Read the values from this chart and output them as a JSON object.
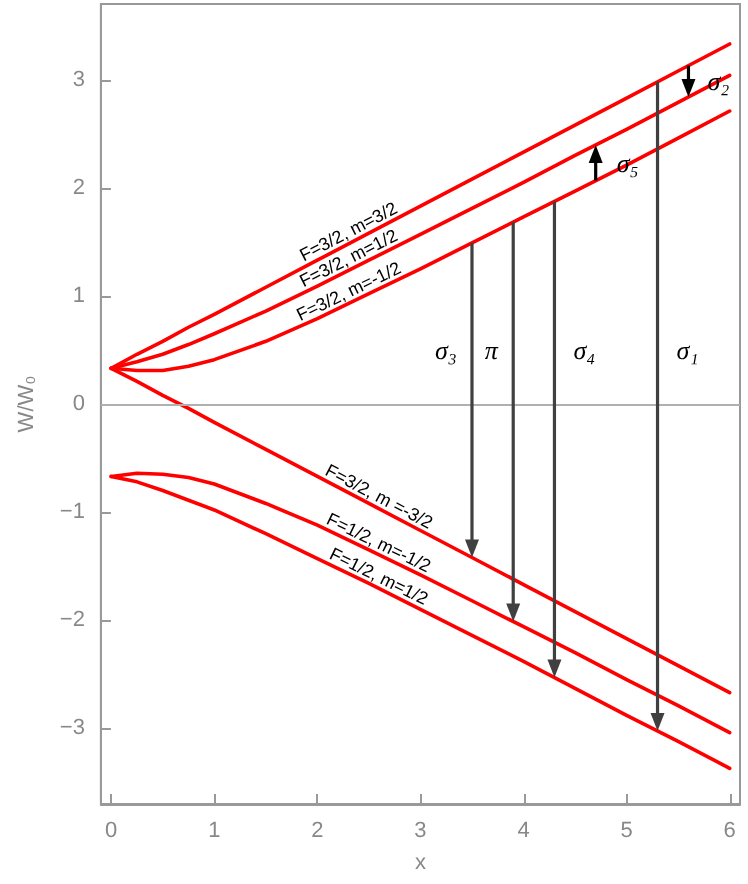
{
  "chart_data": {
    "type": "line",
    "xlabel": "x",
    "ylabel": "W/W₀",
    "xlim": [
      -0.1,
      6.1
    ],
    "xticks": [
      0,
      1,
      2,
      3,
      4,
      5,
      6
    ],
    "ylim": [
      -3.7,
      3.7
    ],
    "yticks": [
      -3,
      -2,
      -1,
      0,
      1,
      2,
      3
    ],
    "grid": false,
    "legend": false,
    "marker": "none",
    "x": [
      0,
      0.25,
      0.5,
      0.75,
      1,
      1.5,
      2,
      2.5,
      3,
      3.5,
      4,
      4.5,
      5,
      5.5,
      6
    ],
    "series": [
      {
        "name": "F=3/2, m=3/2",
        "color": "#ff0000",
        "values": [
          0.33,
          0.46,
          0.58,
          0.71,
          0.83,
          1.08,
          1.33,
          1.58,
          1.83,
          2.08,
          2.33,
          2.58,
          2.83,
          3.08,
          3.33
        ]
      },
      {
        "name": "F=3/2, m=1/2",
        "color": "#ff0000",
        "values": [
          0.33,
          0.39,
          0.46,
          0.55,
          0.65,
          0.86,
          1.09,
          1.33,
          1.57,
          1.81,
          2.05,
          2.3,
          2.54,
          2.79,
          3.04
        ]
      },
      {
        "name": "F=3/2, m=-1/2",
        "color": "#ff0000",
        "values": [
          0.33,
          0.31,
          0.31,
          0.35,
          0.41,
          0.58,
          0.79,
          1.02,
          1.25,
          1.49,
          1.73,
          1.97,
          2.21,
          2.46,
          2.71
        ]
      },
      {
        "name": "F=3/2, m =-3/2",
        "color": "#ff0000",
        "values": [
          0.33,
          0.21,
          0.08,
          -0.04,
          -0.17,
          -0.42,
          -0.67,
          -0.92,
          -1.17,
          -1.42,
          -1.67,
          -1.92,
          -2.17,
          -2.42,
          -2.67
        ]
      },
      {
        "name": "F=1/2, m=-1/2",
        "color": "#ff0000",
        "values": [
          -0.67,
          -0.64,
          -0.65,
          -0.68,
          -0.74,
          -0.92,
          -1.12,
          -1.35,
          -1.58,
          -1.82,
          -2.06,
          -2.3,
          -2.55,
          -2.79,
          -3.04
        ]
      },
      {
        "name": "F=1/2, m=1/2",
        "color": "#ff0000",
        "values": [
          -0.67,
          -0.72,
          -0.8,
          -0.89,
          -0.98,
          -1.2,
          -1.43,
          -1.66,
          -1.9,
          -2.14,
          -2.38,
          -2.63,
          -2.88,
          -3.12,
          -3.37
        ]
      }
    ],
    "annotations": [
      "σ₃",
      "π",
      "σ₄",
      "σ₁",
      "σ₂",
      "σ₅"
    ],
    "ref_lines": [
      {
        "axis": "y",
        "value": 0,
        "color": "#b0b0b0"
      }
    ]
  }
}
